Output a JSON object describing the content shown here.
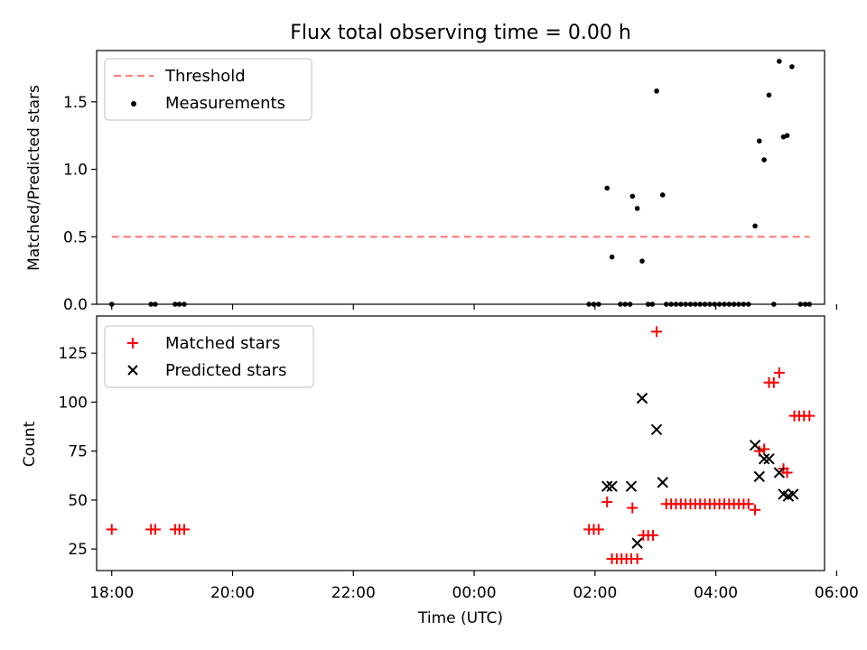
{
  "chart_data": [
    {
      "type": "scatter",
      "title": "Flux total observing time = 0.00 h",
      "xlabel": "",
      "ylabel": "Matched/Predicted stars",
      "xlim_hours": [
        -6.25,
        5.8
      ],
      "ylim": [
        0,
        1.88
      ],
      "yticks": [
        0.0,
        0.5,
        1.0,
        1.5
      ],
      "ytick_labels": [
        "0.0",
        "0.5",
        "1.0",
        "1.5"
      ],
      "legend_position": "upper-left",
      "threshold": {
        "name": "Threshold",
        "value": 0.5,
        "x_range_hours": [
          -6.0,
          5.55
        ],
        "color": "#ff8080",
        "style": "dashed"
      },
      "series": [
        {
          "name": "Measurements",
          "color": "#000000",
          "marker": "dot",
          "points": [
            [
              -6.0,
              0.0
            ],
            [
              -5.35,
              0.0
            ],
            [
              -5.28,
              0.0
            ],
            [
              -4.95,
              0.0
            ],
            [
              -4.88,
              0.0
            ],
            [
              -4.8,
              0.0
            ],
            [
              1.9,
              0.0
            ],
            [
              1.98,
              0.0
            ],
            [
              2.06,
              0.0
            ],
            [
              2.2,
              0.86
            ],
            [
              2.28,
              0.35
            ],
            [
              2.42,
              0.0
            ],
            [
              2.5,
              0.0
            ],
            [
              2.58,
              0.0
            ],
            [
              2.62,
              0.8
            ],
            [
              2.7,
              0.71
            ],
            [
              2.78,
              0.32
            ],
            [
              2.88,
              0.0
            ],
            [
              2.95,
              0.0
            ],
            [
              3.02,
              1.58
            ],
            [
              3.12,
              0.81
            ],
            [
              3.18,
              0.0
            ],
            [
              3.26,
              0.0
            ],
            [
              3.34,
              0.0
            ],
            [
              3.42,
              0.0
            ],
            [
              3.5,
              0.0
            ],
            [
              3.58,
              0.0
            ],
            [
              3.66,
              0.0
            ],
            [
              3.74,
              0.0
            ],
            [
              3.82,
              0.0
            ],
            [
              3.9,
              0.0
            ],
            [
              3.98,
              0.0
            ],
            [
              4.06,
              0.0
            ],
            [
              4.14,
              0.0
            ],
            [
              4.22,
              0.0
            ],
            [
              4.3,
              0.0
            ],
            [
              4.38,
              0.0
            ],
            [
              4.46,
              0.0
            ],
            [
              4.54,
              0.0
            ],
            [
              4.65,
              0.58
            ],
            [
              4.72,
              1.21
            ],
            [
              4.8,
              1.07
            ],
            [
              4.88,
              1.55
            ],
            [
              4.96,
              0.0
            ],
            [
              5.05,
              1.8
            ],
            [
              5.12,
              1.24
            ],
            [
              5.18,
              1.25
            ],
            [
              5.26,
              1.76
            ],
            [
              5.4,
              0.0
            ],
            [
              5.48,
              0.0
            ],
            [
              5.55,
              0.0
            ]
          ]
        }
      ]
    },
    {
      "type": "scatter",
      "title": "",
      "xlabel": "Time (UTC)",
      "ylabel": "Count",
      "xlim_hours": [
        -6.25,
        5.8
      ],
      "ylim": [
        14,
        144
      ],
      "yticks": [
        25,
        50,
        75,
        100,
        125
      ],
      "ytick_labels": [
        "25",
        "50",
        "75",
        "100",
        "125"
      ],
      "xticks_hours": [
        -6,
        -4,
        -2,
        0,
        2,
        4,
        6
      ],
      "xtick_labels": [
        "18:00",
        "20:00",
        "22:00",
        "00:00",
        "02:00",
        "04:00",
        "06:00"
      ],
      "legend_position": "upper-left",
      "series": [
        {
          "name": "Matched stars",
          "color": "#ff0000",
          "marker": "plus",
          "points": [
            [
              -6.0,
              35
            ],
            [
              -5.35,
              35
            ],
            [
              -5.28,
              35
            ],
            [
              -4.95,
              35
            ],
            [
              -4.88,
              35
            ],
            [
              -4.8,
              35
            ],
            [
              1.9,
              35
            ],
            [
              1.98,
              35
            ],
            [
              2.06,
              35
            ],
            [
              2.2,
              49
            ],
            [
              2.28,
              20
            ],
            [
              2.36,
              20
            ],
            [
              2.44,
              20
            ],
            [
              2.52,
              20
            ],
            [
              2.6,
              20
            ],
            [
              2.62,
              46
            ],
            [
              2.7,
              20
            ],
            [
              2.8,
              32
            ],
            [
              2.88,
              32
            ],
            [
              2.96,
              32
            ],
            [
              3.02,
              136
            ],
            [
              3.18,
              48
            ],
            [
              3.26,
              48
            ],
            [
              3.34,
              48
            ],
            [
              3.42,
              48
            ],
            [
              3.5,
              48
            ],
            [
              3.58,
              48
            ],
            [
              3.66,
              48
            ],
            [
              3.74,
              48
            ],
            [
              3.82,
              48
            ],
            [
              3.9,
              48
            ],
            [
              3.98,
              48
            ],
            [
              4.06,
              48
            ],
            [
              4.14,
              48
            ],
            [
              4.22,
              48
            ],
            [
              4.3,
              48
            ],
            [
              4.38,
              48
            ],
            [
              4.46,
              48
            ],
            [
              4.54,
              48
            ],
            [
              4.65,
              45
            ],
            [
              4.72,
              75
            ],
            [
              4.8,
              76
            ],
            [
              4.88,
              110
            ],
            [
              4.96,
              110
            ],
            [
              5.05,
              115
            ],
            [
              5.12,
              66
            ],
            [
              5.18,
              64
            ],
            [
              5.3,
              93
            ],
            [
              5.38,
              93
            ],
            [
              5.46,
              93
            ],
            [
              5.55,
              93
            ]
          ]
        },
        {
          "name": "Predicted stars",
          "color": "#000000",
          "marker": "x",
          "points": [
            [
              2.2,
              57
            ],
            [
              2.28,
              57
            ],
            [
              2.6,
              57
            ],
            [
              2.7,
              28
            ],
            [
              2.78,
              102
            ],
            [
              3.02,
              86
            ],
            [
              3.12,
              59
            ],
            [
              4.65,
              78
            ],
            [
              4.72,
              62
            ],
            [
              4.8,
              71
            ],
            [
              4.88,
              71
            ],
            [
              5.05,
              64
            ],
            [
              5.12,
              53
            ],
            [
              5.2,
              52
            ],
            [
              5.28,
              53
            ]
          ]
        }
      ]
    }
  ]
}
